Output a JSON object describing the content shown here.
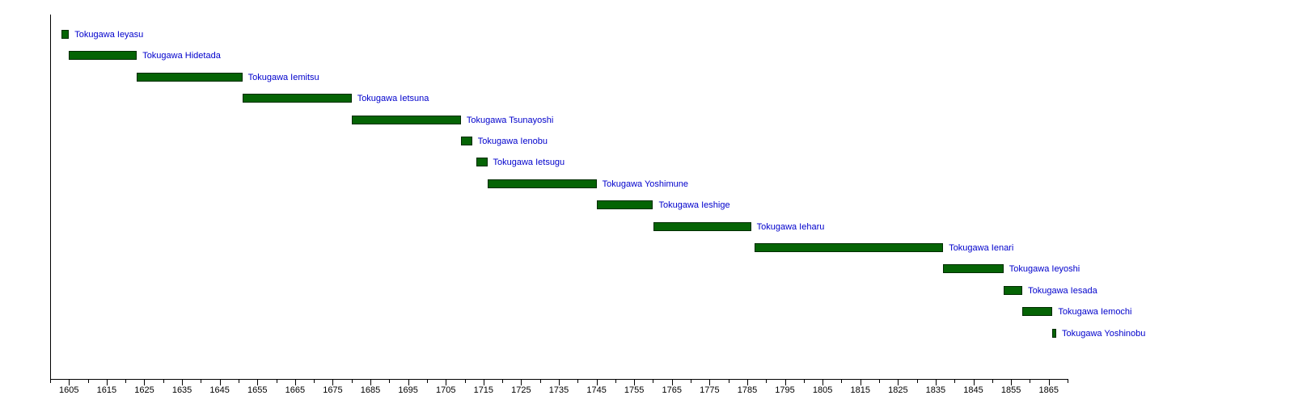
{
  "chart_data": {
    "type": "bar",
    "variant": "horizontal-timeline-gantt",
    "title": "",
    "xlabel": "",
    "ylabel": "",
    "legend": "none",
    "grid": false,
    "series": [
      {
        "name": "Tokugawa Ieyasu",
        "start": 1603,
        "end": 1605
      },
      {
        "name": "Tokugawa Hidetada",
        "start": 1605,
        "end": 1623
      },
      {
        "name": "Tokugawa Iemitsu",
        "start": 1623,
        "end": 1651
      },
      {
        "name": "Tokugawa Ietsuna",
        "start": 1651,
        "end": 1680
      },
      {
        "name": "Tokugawa Tsunayoshi",
        "start": 1680,
        "end": 1709
      },
      {
        "name": "Tokugawa Ienobu",
        "start": 1709,
        "end": 1712
      },
      {
        "name": "Tokugawa Ietsugu",
        "start": 1713,
        "end": 1716
      },
      {
        "name": "Tokugawa Yoshimune",
        "start": 1716,
        "end": 1745
      },
      {
        "name": "Tokugawa Ieshige",
        "start": 1745,
        "end": 1760
      },
      {
        "name": "Tokugawa Ieharu",
        "start": 1760,
        "end": 1786
      },
      {
        "name": "Tokugawa Ienari",
        "start": 1787,
        "end": 1837
      },
      {
        "name": "Tokugawa Ieyoshi",
        "start": 1837,
        "end": 1853
      },
      {
        "name": "Tokugawa Iesada",
        "start": 1853,
        "end": 1858
      },
      {
        "name": "Tokugawa Iemochi",
        "start": 1858,
        "end": 1866
      },
      {
        "name": "Tokugawa Yoshinobu",
        "start": 1866,
        "end": 1867
      }
    ],
    "axis": {
      "min": 1600,
      "max": 1870,
      "minor_tick_step": 5,
      "tick_labels": [
        1605,
        1615,
        1625,
        1635,
        1645,
        1655,
        1665,
        1675,
        1685,
        1695,
        1705,
        1715,
        1725,
        1735,
        1745,
        1755,
        1765,
        1775,
        1785,
        1795,
        1805,
        1815,
        1825,
        1835,
        1845,
        1855,
        1865
      ]
    },
    "colors": {
      "bar_fill": "#056405",
      "bar_border": "#002b00",
      "reign_label": "#0000cc",
      "axis": "#000000",
      "tick_label": "#000000",
      "background": "#ffffff"
    }
  }
}
